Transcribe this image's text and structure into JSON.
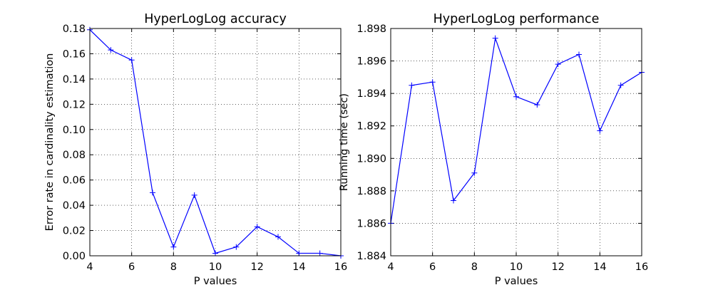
{
  "chart_data": [
    {
      "type": "line",
      "title": "HyperLogLog accuracy",
      "xlabel": "P values",
      "ylabel": "Error rate in cardinality estimation",
      "xlim": [
        4,
        16
      ],
      "ylim": [
        0,
        0.18
      ],
      "xticks": [
        4,
        6,
        8,
        10,
        12,
        14,
        16
      ],
      "yticks": [
        0.0,
        0.02,
        0.04,
        0.06,
        0.08,
        0.1,
        0.12,
        0.14,
        0.16,
        0.18
      ],
      "x_tick_labels": [
        "4",
        "6",
        "8",
        "10",
        "12",
        "14",
        "16"
      ],
      "y_tick_labels": [
        "0.00",
        "0.02",
        "0.04",
        "0.06",
        "0.08",
        "0.10",
        "0.12",
        "0.14",
        "0.16",
        "0.18"
      ],
      "grid": true,
      "marker": "+",
      "color": "#0000ff",
      "x": [
        4,
        5,
        6,
        7,
        8,
        9,
        10,
        11,
        12,
        13,
        14,
        15,
        16
      ],
      "y": [
        0.179,
        0.163,
        0.155,
        0.05,
        0.007,
        0.048,
        0.002,
        0.007,
        0.023,
        0.015,
        0.002,
        0.002,
        0.0
      ]
    },
    {
      "type": "line",
      "title": "HyperLogLog performance",
      "xlabel": "P values",
      "ylabel": "Running time (sec)",
      "xlim": [
        4,
        16
      ],
      "ylim": [
        1.884,
        1.898
      ],
      "xticks": [
        4,
        6,
        8,
        10,
        12,
        14,
        16
      ],
      "yticks": [
        1.884,
        1.886,
        1.888,
        1.89,
        1.892,
        1.894,
        1.896,
        1.898
      ],
      "x_tick_labels": [
        "4",
        "6",
        "8",
        "10",
        "12",
        "14",
        "16"
      ],
      "y_tick_labels": [
        "1.884",
        "1.886",
        "1.888",
        "1.890",
        "1.892",
        "1.894",
        "1.896",
        "1.898"
      ],
      "grid": true,
      "marker": "+",
      "color": "#0000ff",
      "x": [
        4,
        5,
        6,
        7,
        8,
        9,
        10,
        11,
        12,
        13,
        14,
        15,
        16
      ],
      "y": [
        1.886,
        1.8945,
        1.8947,
        1.8874,
        1.8891,
        1.8974,
        1.8938,
        1.8933,
        1.8958,
        1.8964,
        1.8917,
        1.8945,
        1.8953
      ]
    }
  ]
}
